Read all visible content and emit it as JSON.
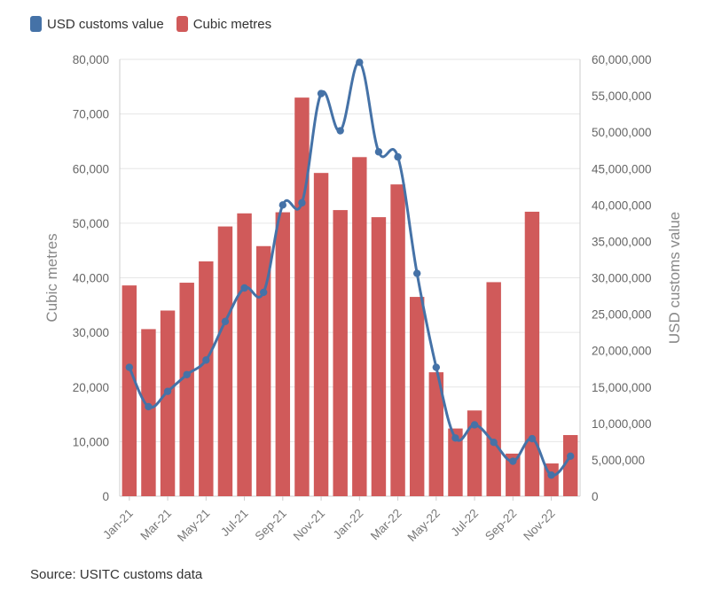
{
  "chart_data": {
    "type": "bar+line",
    "legend": [
      {
        "label": "USD customs value",
        "color": "#4572a7"
      },
      {
        "label": "Cubic metres",
        "color": "#d05a5a"
      }
    ],
    "categories": [
      "Jan-21",
      "Feb-21",
      "Mar-21",
      "Apr-21",
      "May-21",
      "Jun-21",
      "Jul-21",
      "Aug-21",
      "Sep-21",
      "Oct-21",
      "Nov-21",
      "Dec-21",
      "Jan-22",
      "Feb-22",
      "Mar-22",
      "Apr-22",
      "May-22",
      "Jun-22",
      "Jul-22",
      "Aug-22",
      "Sep-22",
      "Oct-22",
      "Nov-22",
      "Dec-22"
    ],
    "x_tick_labels": [
      "Jan-21",
      "Mar-21",
      "May-21",
      "Jul-21",
      "Sep-21",
      "Nov-21",
      "Jan-22",
      "Mar-22",
      "May-22",
      "Jul-22",
      "Sep-22",
      "Nov-22"
    ],
    "series": [
      {
        "name": "Cubic metres",
        "type": "bar",
        "axis": "left",
        "color": "#d05a5a",
        "values": [
          38600,
          30600,
          34000,
          39100,
          43000,
          49400,
          51800,
          45800,
          52000,
          73000,
          59200,
          52400,
          62100,
          51100,
          57100,
          36500,
          22700,
          12400,
          15700,
          39200,
          7800,
          52100,
          6000,
          11200
        ]
      },
      {
        "name": "USD customs value",
        "type": "line",
        "axis": "right",
        "color": "#4572a7",
        "values": [
          17700000,
          12300000,
          14400000,
          16700000,
          18700000,
          24000000,
          28600000,
          28000000,
          40000000,
          40300000,
          55300000,
          50200000,
          59600000,
          47300000,
          46600000,
          30600000,
          17700000,
          8000000,
          9800000,
          7400000,
          4800000,
          7900000,
          2900000,
          5500000
        ]
      }
    ],
    "y_left": {
      "label": "Cubic metres",
      "range": [
        0,
        80000
      ],
      "ticks": [
        "0",
        "10,000",
        "20,000",
        "30,000",
        "40,000",
        "50,000",
        "60,000",
        "70,000",
        "80,000"
      ]
    },
    "y_right": {
      "label": "USD customs value",
      "range": [
        0,
        60000000
      ],
      "ticks": [
        "0",
        "5,000,000",
        "10,000,000",
        "15,000,000",
        "20,000,000",
        "25,000,000",
        "30,000,000",
        "35,000,000",
        "40,000,000",
        "45,000,000",
        "50,000,000",
        "55,000,000",
        "60,000,000"
      ]
    },
    "grid": true
  },
  "source": "Source: USITC customs data"
}
